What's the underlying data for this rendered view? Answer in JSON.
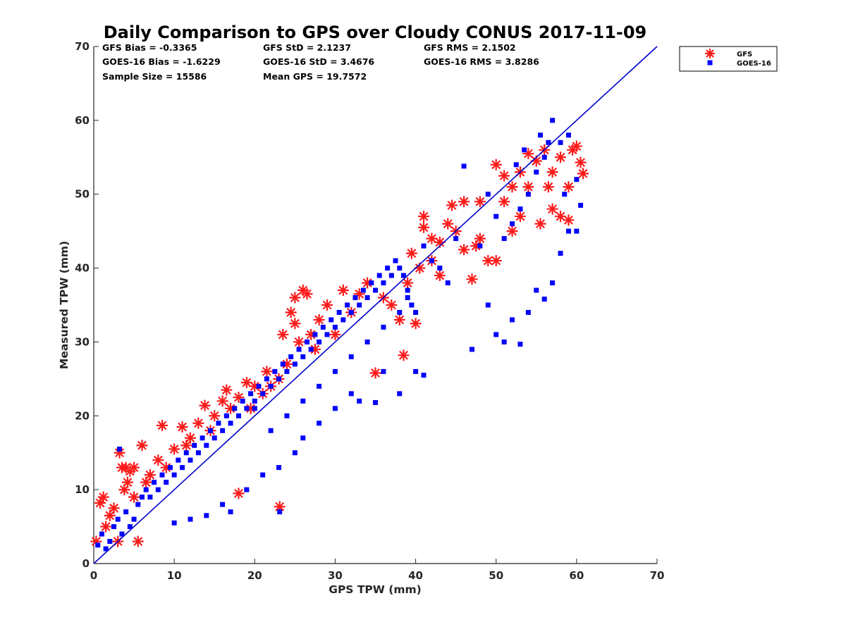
{
  "chart_data": {
    "type": "scatter",
    "title": "Daily Comparison to GPS over Cloudy CONUS 2017-11-09",
    "xlabel": "GPS TPW (mm)",
    "ylabel": "Measured TPW (mm)",
    "xlim": [
      0,
      70
    ],
    "ylim": [
      0,
      70
    ],
    "xticks": [
      0,
      10,
      20,
      30,
      40,
      50,
      60,
      70
    ],
    "yticks": [
      0,
      10,
      20,
      30,
      40,
      50,
      60,
      70
    ],
    "grid": false,
    "legend_position": "outside-top-right",
    "reference_line": {
      "x": [
        0,
        70
      ],
      "y": [
        0,
        70
      ],
      "color": "#0000cc"
    },
    "stats": [
      [
        "GFS Bias = -0.3365",
        "GFS StD = 2.1237",
        "GFS RMS = 2.1502"
      ],
      [
        "GOES-16 Bias = -1.6229",
        "GOES-16 StD = 3.4676",
        "GOES-16 RMS = 3.8286"
      ],
      [
        "Sample Size = 15586",
        "Mean GPS = 19.7572",
        ""
      ]
    ],
    "series": [
      {
        "name": "GFS",
        "marker": "asterisk",
        "color": "#ff1a1a",
        "points": [
          [
            0.3,
            3
          ],
          [
            0.8,
            8.2
          ],
          [
            1.2,
            9
          ],
          [
            1.5,
            5
          ],
          [
            2,
            6.5
          ],
          [
            2.5,
            7.5
          ],
          [
            3,
            3
          ],
          [
            3.2,
            15
          ],
          [
            3.5,
            13
          ],
          [
            3.8,
            10
          ],
          [
            4,
            13
          ],
          [
            4.2,
            11
          ],
          [
            4.5,
            12.5
          ],
          [
            5,
            9
          ],
          [
            5,
            13
          ],
          [
            5.5,
            3
          ],
          [
            6,
            16
          ],
          [
            6.5,
            11
          ],
          [
            7,
            12
          ],
          [
            8,
            14
          ],
          [
            8.5,
            18.7
          ],
          [
            9,
            13
          ],
          [
            10,
            15.5
          ],
          [
            11,
            18.5
          ],
          [
            11.5,
            16
          ],
          [
            12,
            17
          ],
          [
            13,
            19
          ],
          [
            13.8,
            21.4
          ],
          [
            14.5,
            18
          ],
          [
            15,
            20
          ],
          [
            16,
            22
          ],
          [
            16.5,
            23.5
          ],
          [
            17,
            21
          ],
          [
            18,
            22.5
          ],
          [
            18,
            9.5
          ],
          [
            19,
            24.5
          ],
          [
            19.5,
            21
          ],
          [
            20,
            24
          ],
          [
            21,
            23
          ],
          [
            21.5,
            26
          ],
          [
            22,
            24
          ],
          [
            23,
            25
          ],
          [
            23.1,
            7.7
          ],
          [
            23.5,
            31
          ],
          [
            24,
            27
          ],
          [
            24.5,
            34
          ],
          [
            25,
            36
          ],
          [
            25,
            32.5
          ],
          [
            25.5,
            30
          ],
          [
            26,
            37
          ],
          [
            26.5,
            36.5
          ],
          [
            27,
            31
          ],
          [
            27.5,
            29
          ],
          [
            28,
            33
          ],
          [
            29,
            35
          ],
          [
            30,
            31
          ],
          [
            31,
            37
          ],
          [
            32,
            34
          ],
          [
            33,
            36.5
          ],
          [
            34,
            38
          ],
          [
            35,
            25.8
          ],
          [
            36,
            36
          ],
          [
            37,
            35
          ],
          [
            38,
            33
          ],
          [
            38.5,
            28.2
          ],
          [
            39,
            38
          ],
          [
            40,
            32.5
          ],
          [
            41,
            47
          ],
          [
            41,
            45.5
          ],
          [
            42,
            44
          ],
          [
            43,
            39
          ],
          [
            43,
            43.5
          ],
          [
            44,
            46
          ],
          [
            44.5,
            48.5
          ],
          [
            45,
            45
          ],
          [
            46,
            49
          ],
          [
            46,
            42.5
          ],
          [
            47,
            38.5
          ],
          [
            48,
            44
          ],
          [
            48,
            49
          ],
          [
            49,
            41
          ],
          [
            50,
            41
          ],
          [
            51,
            52.5
          ],
          [
            51,
            49
          ],
          [
            52,
            45
          ],
          [
            53,
            53
          ],
          [
            53,
            47
          ],
          [
            54,
            55.5
          ],
          [
            54,
            51
          ],
          [
            55,
            54.5
          ],
          [
            55.5,
            46
          ],
          [
            56,
            56
          ],
          [
            56.5,
            51
          ],
          [
            57,
            53
          ],
          [
            57,
            48
          ],
          [
            58,
            55
          ],
          [
            58,
            47
          ],
          [
            59,
            51
          ],
          [
            59.5,
            56
          ],
          [
            60,
            56.5
          ],
          [
            60.5,
            54.3
          ],
          [
            60.8,
            52.8
          ],
          [
            59,
            46.5
          ],
          [
            52,
            51
          ],
          [
            50,
            54
          ],
          [
            47.5,
            43
          ],
          [
            42,
            41
          ],
          [
            40.5,
            40
          ],
          [
            39.5,
            42
          ]
        ]
      },
      {
        "name": "GOES-16",
        "marker": "square",
        "color": "#0000ff",
        "points": [
          [
            0.5,
            2.5
          ],
          [
            1,
            4
          ],
          [
            1.5,
            2
          ],
          [
            2,
            3
          ],
          [
            2.5,
            5
          ],
          [
            3,
            6
          ],
          [
            3.2,
            15.5
          ],
          [
            3.5,
            4
          ],
          [
            4,
            7
          ],
          [
            4.5,
            5
          ],
          [
            5,
            6
          ],
          [
            5.5,
            8
          ],
          [
            6,
            9
          ],
          [
            6.5,
            10
          ],
          [
            7,
            9
          ],
          [
            7.5,
            11
          ],
          [
            8,
            10
          ],
          [
            8.5,
            12
          ],
          [
            9,
            11
          ],
          [
            9.5,
            13
          ],
          [
            10,
            12
          ],
          [
            10.5,
            14
          ],
          [
            11,
            13
          ],
          [
            11.5,
            15
          ],
          [
            12,
            14
          ],
          [
            12.5,
            16
          ],
          [
            13,
            15
          ],
          [
            13.5,
            17
          ],
          [
            14,
            16
          ],
          [
            14.5,
            18
          ],
          [
            15,
            17
          ],
          [
            15.5,
            19
          ],
          [
            16,
            18
          ],
          [
            16.5,
            20
          ],
          [
            17,
            19
          ],
          [
            17.5,
            21
          ],
          [
            18,
            20
          ],
          [
            18.5,
            22
          ],
          [
            19,
            21
          ],
          [
            19.5,
            23
          ],
          [
            20,
            22
          ],
          [
            20.5,
            24
          ],
          [
            21,
            23
          ],
          [
            21.5,
            25
          ],
          [
            22,
            24
          ],
          [
            22.5,
            26
          ],
          [
            23,
            25
          ],
          [
            23.5,
            27
          ],
          [
            24,
            26
          ],
          [
            24.5,
            28
          ],
          [
            25,
            27
          ],
          [
            25.5,
            29
          ],
          [
            26,
            28
          ],
          [
            26.5,
            30
          ],
          [
            27,
            29
          ],
          [
            27.5,
            31
          ],
          [
            28,
            30
          ],
          [
            28.5,
            32
          ],
          [
            29,
            31
          ],
          [
            29.5,
            33
          ],
          [
            30,
            32
          ],
          [
            30.5,
            34
          ],
          [
            31,
            33
          ],
          [
            31.5,
            35
          ],
          [
            32,
            34
          ],
          [
            32.5,
            36
          ],
          [
            33,
            35
          ],
          [
            33.5,
            37
          ],
          [
            34,
            36
          ],
          [
            34.5,
            38
          ],
          [
            35,
            37
          ],
          [
            35.5,
            39
          ],
          [
            36,
            38
          ],
          [
            36.5,
            40
          ],
          [
            37,
            39
          ],
          [
            37.5,
            41
          ],
          [
            38,
            40
          ],
          [
            38.5,
            39
          ],
          [
            39,
            37
          ],
          [
            39.5,
            35
          ],
          [
            40,
            34
          ],
          [
            10,
            5.5
          ],
          [
            12,
            6
          ],
          [
            14,
            6.5
          ],
          [
            16,
            8
          ],
          [
            17,
            7
          ],
          [
            19,
            10
          ],
          [
            21,
            12
          ],
          [
            23,
            13
          ],
          [
            25,
            15
          ],
          [
            26,
            17
          ],
          [
            28,
            19
          ],
          [
            30,
            21
          ],
          [
            32,
            23
          ],
          [
            33,
            22
          ],
          [
            35,
            21.8
          ],
          [
            36,
            26
          ],
          [
            38,
            23
          ],
          [
            40,
            26
          ],
          [
            41,
            25.5
          ],
          [
            23.1,
            7
          ],
          [
            20,
            21
          ],
          [
            22,
            18
          ],
          [
            24,
            20
          ],
          [
            26,
            22
          ],
          [
            28,
            24
          ],
          [
            30,
            26
          ],
          [
            32,
            28
          ],
          [
            34,
            30
          ],
          [
            36,
            32
          ],
          [
            38,
            34
          ],
          [
            39,
            36
          ],
          [
            47,
            29
          ],
          [
            49,
            35
          ],
          [
            50,
            31
          ],
          [
            51,
            30
          ],
          [
            52,
            33
          ],
          [
            53,
            29.7
          ],
          [
            54,
            34
          ],
          [
            55,
            37
          ],
          [
            56,
            35.8
          ],
          [
            57,
            38
          ],
          [
            58,
            42
          ],
          [
            59,
            45
          ],
          [
            60,
            45
          ],
          [
            60.5,
            48.5
          ],
          [
            60,
            52
          ],
          [
            59,
            58
          ],
          [
            58,
            57
          ],
          [
            57,
            60
          ],
          [
            56,
            55
          ],
          [
            55,
            53
          ],
          [
            54,
            50
          ],
          [
            53,
            48
          ],
          [
            52,
            46
          ],
          [
            51,
            44
          ],
          [
            50,
            47
          ],
          [
            49,
            50
          ],
          [
            48,
            43
          ],
          [
            46,
            53.8
          ],
          [
            45,
            44
          ],
          [
            44,
            38
          ],
          [
            43,
            40
          ],
          [
            42,
            41
          ],
          [
            41,
            43
          ],
          [
            52.5,
            54
          ],
          [
            53.5,
            56
          ],
          [
            55.5,
            58
          ],
          [
            56.5,
            57
          ],
          [
            58.5,
            50
          ]
        ]
      }
    ]
  }
}
